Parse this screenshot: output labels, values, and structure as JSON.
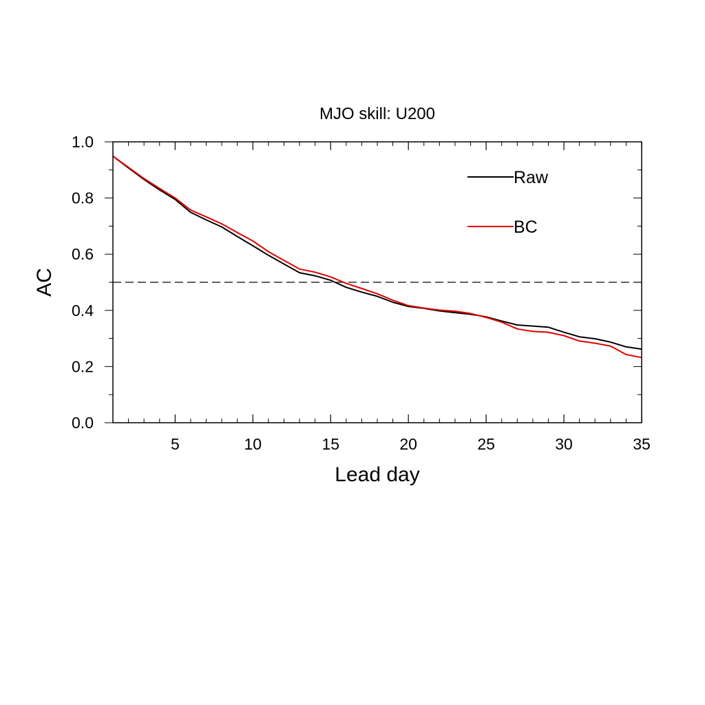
{
  "chart_data": {
    "type": "line",
    "title": "MJO skill: U200",
    "xlabel": "Lead day",
    "ylabel": "AC",
    "xlim": [
      1,
      35
    ],
    "ylim": [
      0.0,
      1.0
    ],
    "x_ticks": [
      5,
      10,
      15,
      20,
      25,
      30,
      35
    ],
    "x_tick_labels": [
      "5",
      "10",
      "15",
      "20",
      "25",
      "30",
      "35"
    ],
    "y_ticks": [
      0.0,
      0.2,
      0.4,
      0.6,
      0.8,
      1.0
    ],
    "y_tick_labels": [
      "0.0",
      "0.2",
      "0.4",
      "0.6",
      "0.8",
      "1.0"
    ],
    "x_minor_step": 1,
    "reference_line": {
      "y": 0.5,
      "style": "dashed",
      "color": "#000000"
    },
    "legend_position": "top-right",
    "x": [
      1,
      2,
      3,
      4,
      5,
      6,
      7,
      8,
      9,
      10,
      11,
      12,
      13,
      14,
      15,
      16,
      17,
      18,
      19,
      20,
      21,
      22,
      23,
      24,
      25,
      26,
      27,
      28,
      29,
      30,
      31,
      32,
      33,
      34,
      35
    ],
    "series": [
      {
        "name": "Raw",
        "color": "#000000",
        "values": [
          0.949,
          0.907,
          0.866,
          0.829,
          0.795,
          0.749,
          0.722,
          0.697,
          0.663,
          0.63,
          0.596,
          0.565,
          0.534,
          0.523,
          0.507,
          0.482,
          0.465,
          0.45,
          0.429,
          0.414,
          0.407,
          0.398,
          0.392,
          0.386,
          0.377,
          0.362,
          0.348,
          0.344,
          0.34,
          0.322,
          0.306,
          0.299,
          0.287,
          0.27,
          0.262
        ]
      },
      {
        "name": "BC",
        "color": "#e00000",
        "values": [
          0.949,
          0.909,
          0.869,
          0.834,
          0.8,
          0.757,
          0.733,
          0.708,
          0.677,
          0.647,
          0.609,
          0.578,
          0.547,
          0.536,
          0.519,
          0.496,
          0.478,
          0.459,
          0.436,
          0.417,
          0.408,
          0.401,
          0.397,
          0.389,
          0.375,
          0.358,
          0.334,
          0.325,
          0.322,
          0.31,
          0.291,
          0.283,
          0.273,
          0.243,
          0.232
        ]
      }
    ]
  }
}
